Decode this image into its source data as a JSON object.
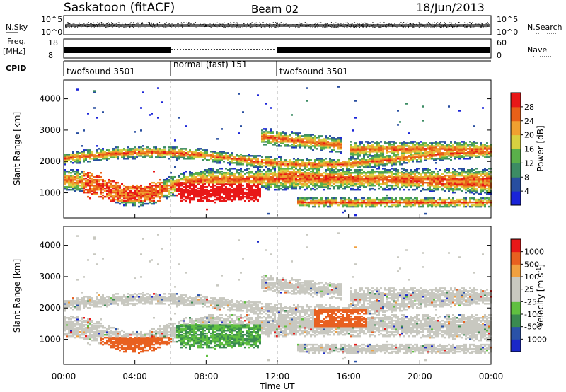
{
  "header": {
    "station": "Saskatoon (fitACF)",
    "beam": "Beam 02",
    "date": "18/Jun/2013"
  },
  "strip_labels": {
    "nsky": "N.Sky",
    "nsearch": "N.Search",
    "freq_line1": "Freq.",
    "freq_line2": "[MHz]",
    "nave": "Nave",
    "cpid": "CPID",
    "nsky_ticks": [
      "10^5",
      "10^0"
    ],
    "freq_ticks": [
      "18",
      "8"
    ],
    "nave_ticks": [
      "60",
      "0"
    ]
  },
  "chart_data": [
    {
      "type": "heatmap",
      "panel": "power",
      "ylabel": "Slant Range [km]",
      "y_ticks": [
        "1000",
        "2000",
        "3000",
        "4000"
      ],
      "ylim": [
        200,
        4600
      ],
      "xlim": [
        "00:00",
        "24:00"
      ],
      "colorbar_label": "Power [dB]",
      "colorbar_ticks": [
        "4",
        "8",
        "12",
        "16",
        "20",
        "24",
        "28"
      ],
      "colorbar_colors": [
        "#1a24d8",
        "#284ea0",
        "#3c8c64",
        "#5ab04a",
        "#d8d040",
        "#f0a030",
        "#e86018",
        "#e81818"
      ],
      "cpid_segments": [
        {
          "label": "twofsound 3501",
          "start_hour": 0,
          "end_hour": 6
        },
        {
          "label": "normal (fast) 151",
          "start_hour": 6,
          "end_hour": 12
        },
        {
          "label": "twofsound 3501",
          "start_hour": 12,
          "end_hour": 24
        }
      ]
    },
    {
      "type": "heatmap",
      "panel": "velocity",
      "ylabel": "Slant Range [km]",
      "y_ticks": [
        "1000",
        "2000",
        "3000",
        "4000"
      ],
      "ylim": [
        200,
        4600
      ],
      "xlim": [
        "00:00",
        "24:00"
      ],
      "colorbar_label": "Velocity [m s",
      "colorbar_label_sup": "-1",
      "colorbar_label_end": "]",
      "colorbar_ticks": [
        "1000",
        "500",
        "100",
        "25",
        "-25",
        "-100",
        "-500",
        "-1000"
      ],
      "colorbar_colors": [
        "#1a28c8",
        "#2a52a8",
        "#3a8a50",
        "#60c040",
        "#c8c8c0",
        "#c8c8c0",
        "#f0a040",
        "#e86020",
        "#e81818"
      ]
    }
  ],
  "x_axis": {
    "ticks": [
      "00:00",
      "04:00",
      "08:00",
      "12:00",
      "16:00",
      "20:00",
      "00:00"
    ],
    "label": "Time UT"
  }
}
